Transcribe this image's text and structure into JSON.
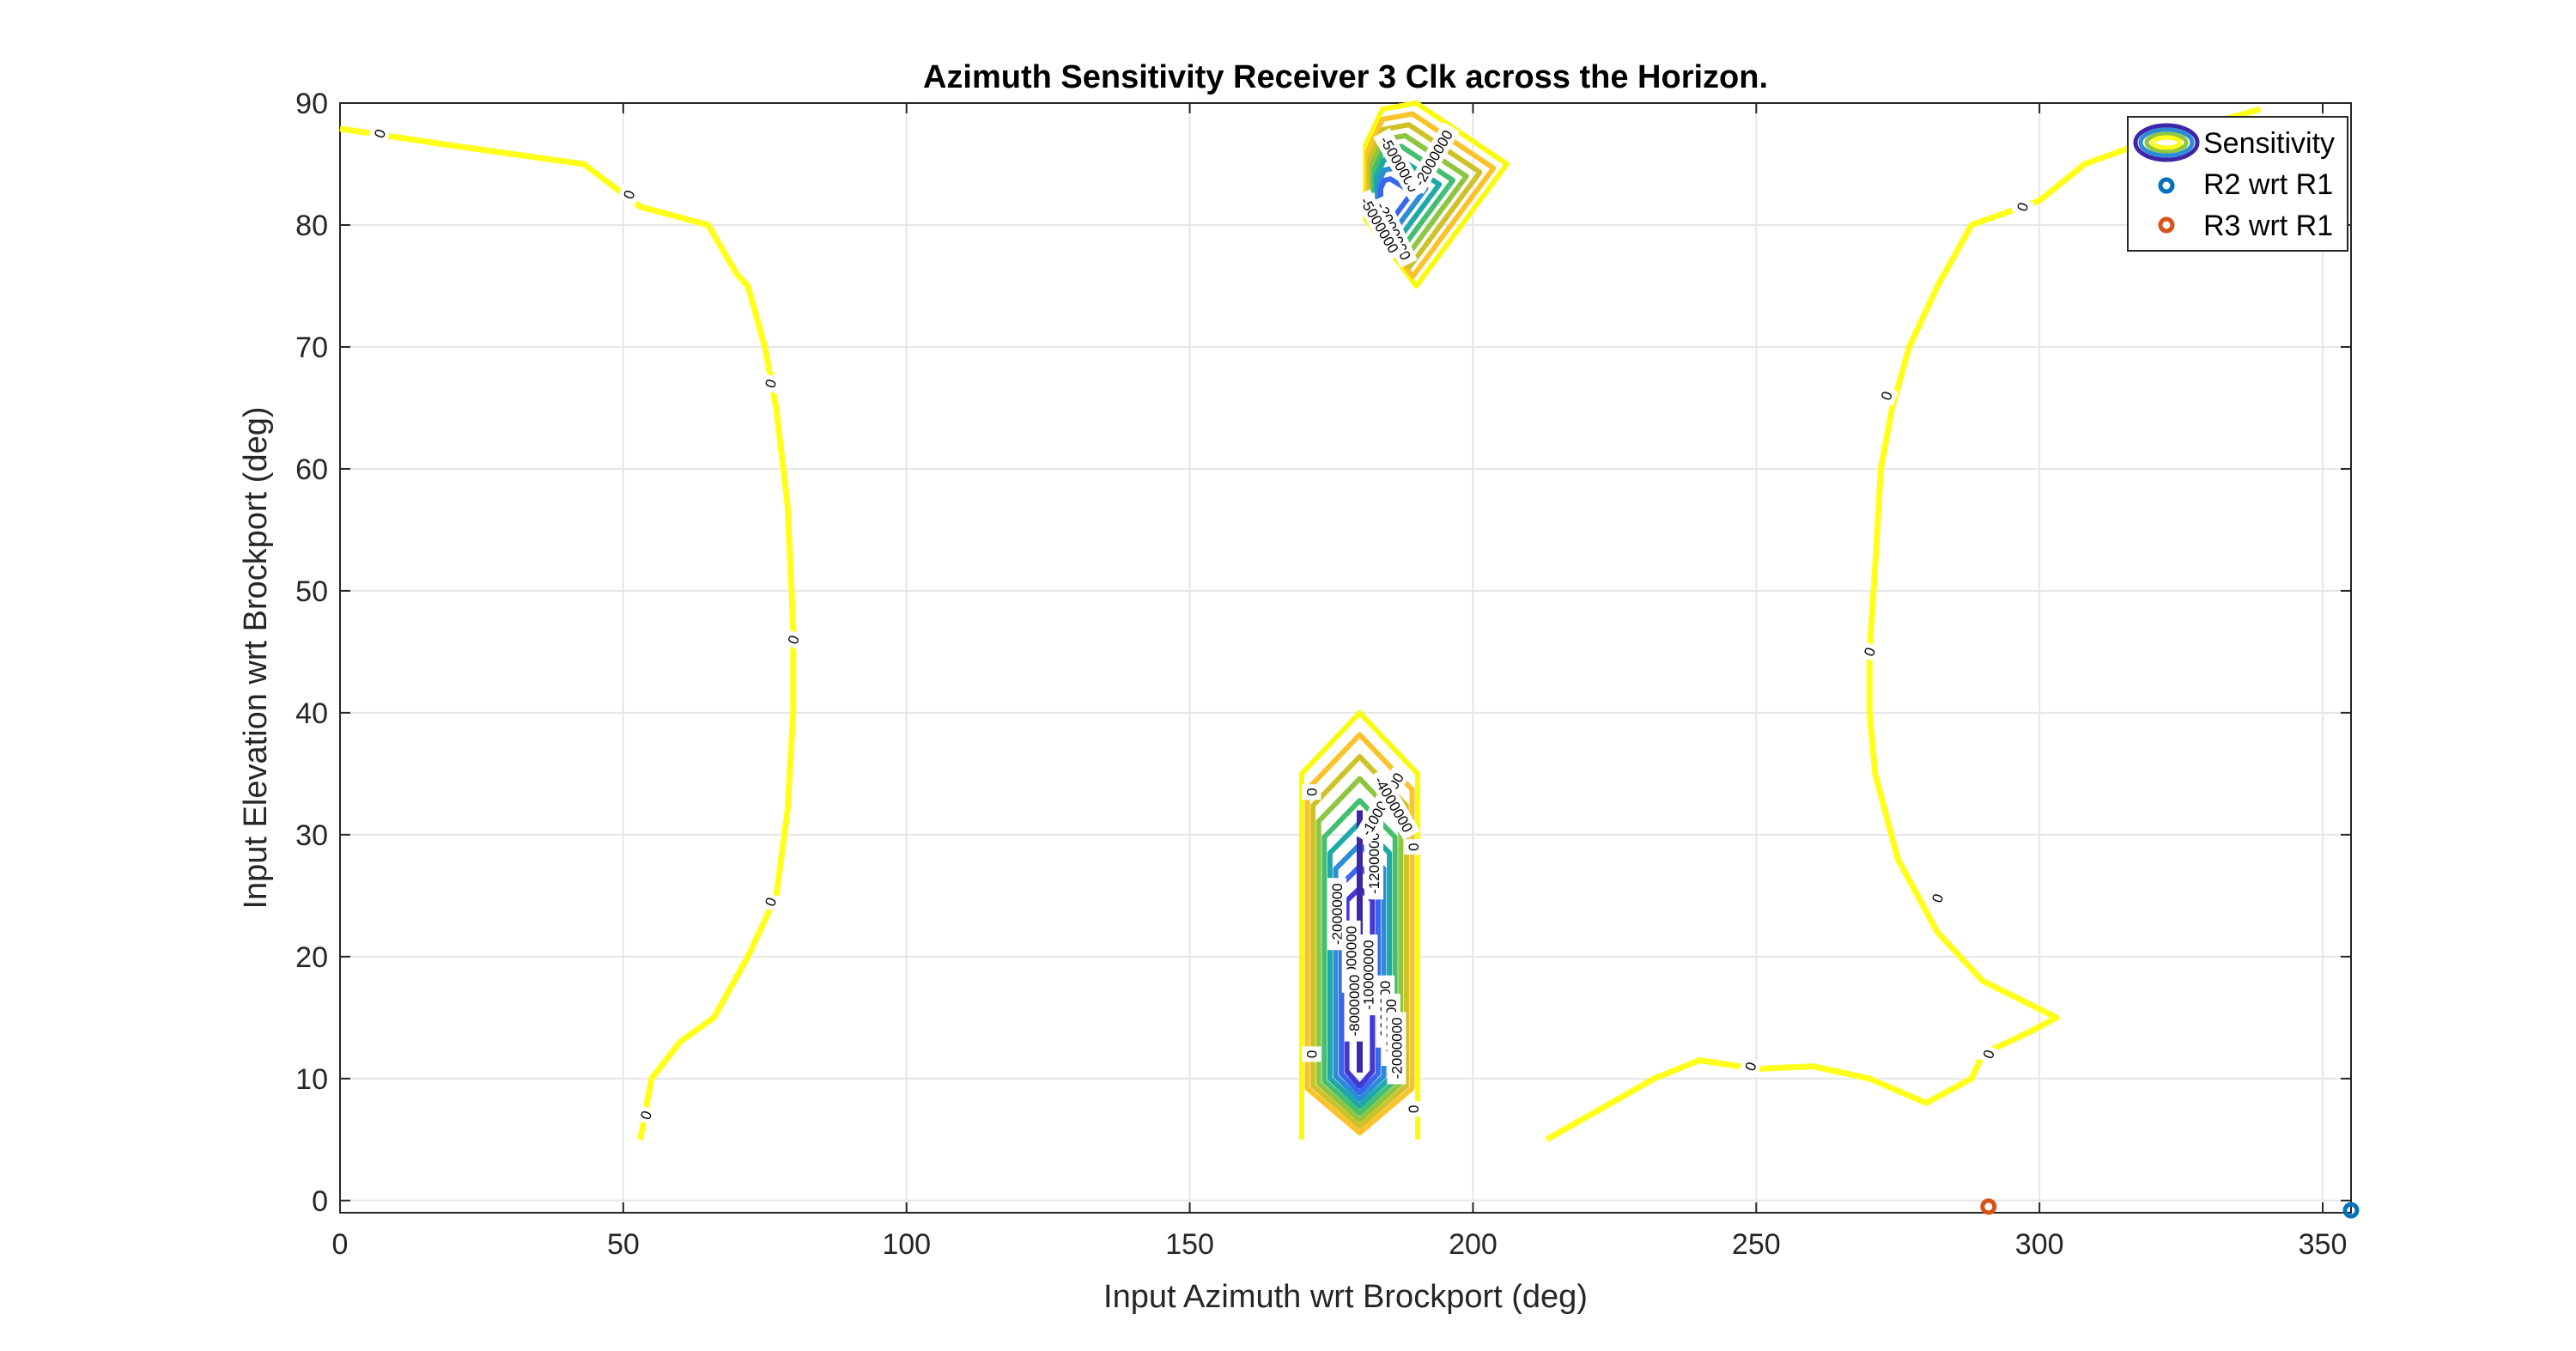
{
  "chart_data": {
    "type": "contour",
    "title": "Azimuth Sensitivity Receiver 3 Clk across the Horizon.",
    "xlabel": "Input Azimuth wrt Brockport (deg)",
    "ylabel": "Input Elevation wrt Brockport (deg)",
    "xlim": [
      0,
      355
    ],
    "ylim": [
      -1,
      90
    ],
    "xticks": [
      0,
      50,
      100,
      150,
      200,
      250,
      300,
      350
    ],
    "yticks": [
      0,
      10,
      20,
      30,
      40,
      50,
      60,
      70,
      80,
      90
    ],
    "grid": true,
    "legend": {
      "placement": "top-right",
      "entries": [
        "Sensitivity",
        "R2 wrt R1",
        "R3 wrt R1"
      ]
    },
    "colors": {
      "zero": "#ffff1a",
      "palette": [
        "#f9fb0e",
        "#fbc32b",
        "#cfc228",
        "#8fc640",
        "#44bf70",
        "#1fa8a8",
        "#2c8dd6",
        "#3a66ee",
        "#4338d3",
        "#3e26a8"
      ],
      "r2": "#0072bd",
      "r3": "#d95319"
    },
    "zero_contours": [
      [
        [
          0,
          87.9
        ],
        [
          20,
          86.5
        ],
        [
          43,
          85
        ],
        [
          53,
          81.5
        ],
        [
          65,
          80
        ],
        [
          70,
          76
        ],
        [
          72,
          75
        ],
        [
          75,
          70
        ],
        [
          77,
          65
        ],
        [
          79,
          57
        ],
        [
          80,
          47
        ],
        [
          80,
          40
        ],
        [
          79,
          32
        ],
        [
          77,
          25
        ],
        [
          72,
          20
        ],
        [
          66,
          15
        ],
        [
          60,
          13
        ],
        [
          55,
          10
        ],
        [
          53,
          5
        ]
      ],
      [
        [
          339,
          89.5
        ],
        [
          320,
          87
        ],
        [
          308,
          85
        ],
        [
          300,
          82
        ],
        [
          288,
          80
        ],
        [
          282,
          75
        ],
        [
          277,
          70
        ],
        [
          274,
          65
        ],
        [
          272,
          60
        ],
        [
          271,
          52
        ],
        [
          270,
          45
        ],
        [
          270,
          40
        ],
        [
          271,
          35
        ],
        [
          275,
          28
        ],
        [
          282,
          22
        ],
        [
          290,
          18
        ],
        [
          303,
          15
        ],
        [
          299,
          14
        ],
        [
          290,
          12
        ],
        [
          288,
          10
        ],
        [
          280,
          8
        ],
        [
          270,
          10
        ],
        [
          260,
          11
        ],
        [
          250,
          10.8
        ],
        [
          240,
          11.5
        ],
        [
          232,
          10
        ],
        [
          213,
          5
        ]
      ]
    ],
    "zero_labels": [
      {
        "x": 7,
        "y": 87.5,
        "text": "0"
      },
      {
        "x": 51,
        "y": 82.5,
        "text": "0"
      },
      {
        "x": 76,
        "y": 67,
        "text": "0"
      },
      {
        "x": 80,
        "y": 46,
        "text": "0"
      },
      {
        "x": 76,
        "y": 24.5,
        "text": "0"
      },
      {
        "x": 54,
        "y": 7,
        "text": "0"
      },
      {
        "x": 297,
        "y": 81.5,
        "text": "0"
      },
      {
        "x": 273,
        "y": 66,
        "text": "0"
      },
      {
        "x": 270,
        "y": 45,
        "text": "0"
      },
      {
        "x": 282,
        "y": 24.8,
        "text": "0"
      },
      {
        "x": 291,
        "y": 12,
        "text": "0"
      },
      {
        "x": 249,
        "y": 11,
        "text": "0"
      }
    ],
    "blob_upper": {
      "center": [
        186,
        82
      ],
      "rings": 8,
      "labels": [
        {
          "x": 181,
          "y": 82,
          "text": "0",
          "rot": -90
        },
        {
          "x": 187,
          "y": 85,
          "text": "-5000000",
          "rot": 60
        },
        {
          "x": 193,
          "y": 85.5,
          "text": "-2000000",
          "rot": -60
        },
        {
          "x": 186,
          "y": 79.5,
          "text": "-2000000",
          "rot": 65
        },
        {
          "x": 183.5,
          "y": 80,
          "text": "-5000000",
          "rot": 60
        }
      ]
    },
    "blob_lower": {
      "center": [
        180,
        22
      ],
      "rings": 9,
      "labels": [
        {
          "x": 171.5,
          "y": 33.5,
          "text": "0",
          "rot": -90
        },
        {
          "x": 189.5,
          "y": 29,
          "text": "0",
          "rot": -90
        },
        {
          "x": 171.5,
          "y": 12,
          "text": "0",
          "rot": -90
        },
        {
          "x": 189.5,
          "y": 7.5,
          "text": "0",
          "rot": -90
        },
        {
          "x": 176,
          "y": 23.5,
          "text": "-2000000",
          "rot": -90
        },
        {
          "x": 178.5,
          "y": 20,
          "text": "-6000000",
          "rot": -90
        },
        {
          "x": 182.5,
          "y": 28,
          "text": "-12000000",
          "rot": -90
        },
        {
          "x": 184,
          "y": 32.5,
          "text": "-10000000",
          "rot": -60
        },
        {
          "x": 181.5,
          "y": 18.5,
          "text": "-10000000",
          "rot": -90
        },
        {
          "x": 184.5,
          "y": 15.5,
          "text": "-6000000",
          "rot": -90
        },
        {
          "x": 179,
          "y": 16,
          "text": "-8000000",
          "rot": -90
        },
        {
          "x": 185.5,
          "y": 14,
          "text": "-4000000",
          "rot": -90
        },
        {
          "x": 186.5,
          "y": 12.5,
          "text": "-2000000",
          "rot": -90
        },
        {
          "x": 186,
          "y": 32.5,
          "text": "-4000000",
          "rot": 60
        }
      ]
    },
    "points": [
      {
        "name": "R2 wrt R1",
        "x": 355,
        "y": -0.8
      },
      {
        "name": "R3 wrt R1",
        "x": 291,
        "y": -0.5
      }
    ]
  }
}
